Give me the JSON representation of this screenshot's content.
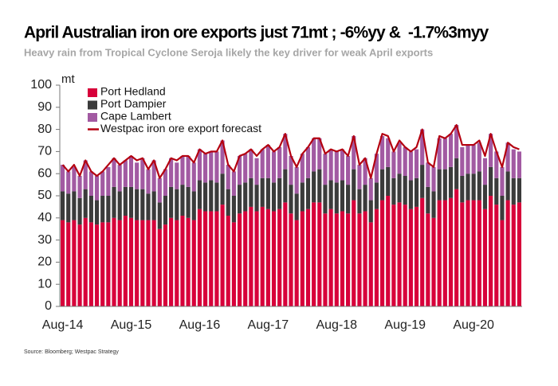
{
  "chart_data": {
    "type": "bar",
    "title": "April Australian iron ore exports just 71mt ; -6%yy &  -1.7%3myy",
    "subtitle": "Heavy rain from Tropical Cyclone Seroja likely the key driver for weak April exports",
    "y_label": "mt",
    "source": "Source: Bloomberg; Westpac Strategy",
    "stacked": true,
    "legend": "upper left",
    "categories": [
      "Aug-14",
      null,
      null,
      null,
      null,
      null,
      null,
      null,
      null,
      null,
      null,
      null,
      "Aug-15",
      null,
      null,
      null,
      null,
      null,
      null,
      null,
      null,
      null,
      null,
      null,
      "Aug-16",
      null,
      null,
      null,
      null,
      null,
      null,
      null,
      null,
      null,
      null,
      null,
      "Aug-17",
      null,
      null,
      null,
      null,
      null,
      null,
      null,
      null,
      null,
      null,
      null,
      "Aug-18",
      null,
      null,
      null,
      null,
      null,
      null,
      null,
      null,
      null,
      null,
      null,
      "Aug-19",
      null,
      null,
      null,
      null,
      null,
      null,
      null,
      null,
      null,
      null,
      null,
      "Aug-20",
      null,
      null,
      null,
      null,
      null,
      null,
      null,
      null
    ],
    "series": [
      {
        "name": "Port Hedland",
        "color": "#d7003a",
        "values": [
          39,
          38,
          39,
          37,
          40,
          38,
          37,
          38,
          38,
          40,
          39,
          41,
          40,
          39,
          39,
          39,
          39,
          35,
          37,
          40,
          39,
          41,
          40,
          39,
          44,
          43,
          43,
          43,
          46,
          41,
          38,
          42,
          43,
          45,
          43,
          45,
          44,
          43,
          44,
          47,
          42,
          39,
          43,
          44,
          47,
          47,
          42,
          44,
          42,
          43,
          42,
          48,
          42,
          43,
          38,
          44,
          48,
          50,
          46,
          47,
          46,
          44,
          45,
          49,
          42,
          40,
          48,
          48,
          49,
          53,
          47,
          48,
          48,
          48,
          44,
          50,
          46,
          39,
          48,
          46,
          47
        ]
      },
      {
        "name": "Port Dampier",
        "color": "#3b3b3b",
        "values": [
          13,
          13,
          13,
          12,
          13,
          12,
          11,
          12,
          12,
          14,
          13,
          13,
          14,
          14,
          14,
          12,
          13,
          12,
          13,
          14,
          14,
          14,
          14,
          13,
          13,
          13,
          14,
          13,
          14,
          12,
          12,
          13,
          13,
          13,
          12,
          13,
          14,
          13,
          14,
          15,
          13,
          12,
          13,
          14,
          14,
          15,
          13,
          13,
          14,
          14,
          13,
          14,
          11,
          12,
          10,
          12,
          14,
          13,
          12,
          13,
          13,
          13,
          13,
          15,
          12,
          12,
          14,
          14,
          14,
          14,
          12,
          12,
          12,
          13,
          11,
          13,
          12,
          11,
          13,
          12,
          11
        ]
      },
      {
        "name": "Cape Lambert",
        "color": "#a25aa2",
        "values": [
          12,
          10,
          11,
          10,
          13,
          11,
          11,
          11,
          13,
          13,
          12,
          12,
          14,
          12,
          14,
          11,
          14,
          11,
          12,
          13,
          12,
          13,
          14,
          13,
          14,
          13,
          13,
          14,
          15,
          11,
          11,
          13,
          13,
          13,
          12,
          13,
          15,
          14,
          14,
          16,
          13,
          12,
          13,
          14,
          15,
          14,
          14,
          14,
          14,
          14,
          13,
          15,
          11,
          12,
          10,
          13,
          15,
          13,
          12,
          14,
          13,
          13,
          13,
          16,
          11,
          11,
          14,
          14,
          15,
          15,
          13,
          13,
          13,
          13,
          12,
          15,
          12,
          13,
          13,
          13,
          12
        ]
      },
      {
        "name": "Westpac iron ore export forecast",
        "color": "#b40010",
        "type": "line",
        "values": [
          64,
          61,
          64,
          59,
          66,
          61,
          59,
          61,
          64,
          67,
          64,
          66,
          68,
          66,
          67,
          62,
          66,
          58,
          62,
          67,
          66,
          68,
          68,
          65,
          71,
          69,
          70,
          70,
          75,
          64,
          61,
          68,
          69,
          71,
          68,
          71,
          73,
          70,
          72,
          78,
          68,
          63,
          69,
          72,
          76,
          76,
          69,
          71,
          70,
          71,
          68,
          77,
          64,
          67,
          58,
          69,
          78,
          77,
          70,
          75,
          72,
          70,
          72,
          80,
          65,
          63,
          77,
          76,
          78,
          82,
          73,
          73,
          73,
          75,
          68,
          78,
          70,
          63,
          74,
          72,
          71
        ]
      }
    ],
    "ylim": [
      0,
      100
    ],
    "yticks": [
      0,
      10,
      20,
      30,
      40,
      50,
      60,
      70,
      80,
      90,
      100
    ]
  }
}
